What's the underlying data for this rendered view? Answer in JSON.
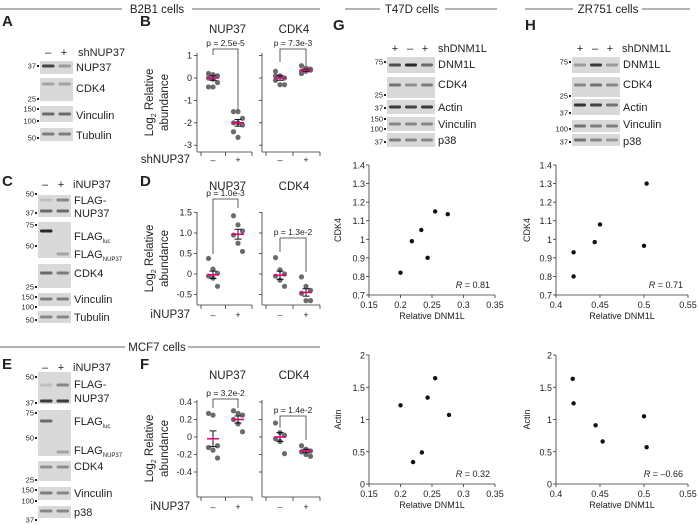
{
  "sections": {
    "b2b1": "B2B1 cells",
    "mcf7": "MCF7 cells",
    "t47d": "T47D cells",
    "zr751": "ZR751 cells"
  },
  "panel_letters": {
    "A": "A",
    "B": "B",
    "C": "C",
    "D": "D",
    "E": "E",
    "F": "F",
    "G": "G",
    "H": "H"
  },
  "blots": {
    "A": {
      "lanes": [
        "–",
        "+"
      ],
      "condition": "shNUP37",
      "strips": [
        {
          "label": "NUP37",
          "markers": [
            "37"
          ],
          "bands": [
            0.8,
            0.35
          ]
        },
        {
          "label": "CDK4",
          "markers": [
            "25"
          ],
          "bands": [
            0.3,
            0.3
          ]
        },
        {
          "label": "Vinculin",
          "markers": [
            "150",
            "100"
          ],
          "bands": [
            0.6,
            0.6
          ]
        },
        {
          "label": "Tubulin",
          "markers": [
            "50"
          ],
          "bands": [
            0.5,
            0.5
          ]
        }
      ]
    },
    "C": {
      "lanes": [
        "–",
        "+"
      ],
      "condition": "iNUP37",
      "strips": [
        {
          "label": "FLAG-",
          "label2": "NUP37",
          "markers": [
            "50",
            "37"
          ],
          "bands": [
            0.6,
            0.6
          ]
        },
        {
          "label": "FLAG",
          "sub": "luc",
          "label2": "FLAG",
          "sub2": "NUP37",
          "markers": [
            "75",
            "50"
          ],
          "bands": [
            0.95,
            0.0
          ]
        },
        {
          "label": "CDK4",
          "markers": [
            "25"
          ],
          "bands": [
            0.6,
            0.5
          ]
        },
        {
          "label": "Vinculin",
          "markers": [
            "150",
            "100"
          ],
          "bands": [
            0.5,
            0.5
          ]
        },
        {
          "label": "Tubulin",
          "markers": [
            "50"
          ],
          "bands": [
            0.45,
            0.45
          ]
        }
      ]
    },
    "E": {
      "lanes": [
        "–",
        "+"
      ],
      "condition": "iNUP37",
      "strips": [
        {
          "label": "FLAG-",
          "label2": "NUP37",
          "markers": [
            "50",
            "37"
          ],
          "bands": [
            0.85,
            0.85
          ]
        },
        {
          "label": "FLAG",
          "sub": "luc",
          "label2": "FLAG",
          "sub2": "NUP37",
          "markers": [
            "75",
            "50"
          ],
          "bands": [
            0.6,
            0.0
          ]
        },
        {
          "label": "CDK4",
          "markers": [
            "25"
          ],
          "bands": [
            0.4,
            0.4
          ]
        },
        {
          "label": "Vinculin",
          "markers": [
            "150",
            "100"
          ],
          "bands": [
            0.5,
            0.45
          ]
        },
        {
          "label": "p38",
          "markers": [
            "37"
          ],
          "bands": [
            0.45,
            0.45
          ]
        }
      ]
    },
    "G": {
      "lanes": [
        "+",
        "–",
        "+"
      ],
      "condition": "shDNM1L",
      "strips": [
        {
          "label": "DNM1L",
          "markers": [
            "75"
          ],
          "bands": [
            0.75,
            0.95,
            0.6
          ]
        },
        {
          "label": "CDK4",
          "markers": [
            "25"
          ],
          "bands": [
            0.55,
            0.4,
            0.5
          ]
        },
        {
          "label": "Actin",
          "markers": [
            "37"
          ],
          "bands": [
            0.85,
            0.8,
            0.85
          ]
        },
        {
          "label": "Vinculin",
          "markers": [
            "150",
            "100"
          ],
          "bands": [
            0.45,
            0.45,
            0.45
          ]
        },
        {
          "label": "p38",
          "markers": [
            "37"
          ],
          "bands": [
            0.5,
            0.45,
            0.45
          ]
        }
      ]
    },
    "H": {
      "lanes": [
        "+",
        "–",
        "+"
      ],
      "condition": "shDNM1L",
      "strips": [
        {
          "label": "DNM1L",
          "markers": [
            "75"
          ],
          "bands": [
            0.35,
            0.85,
            0.35
          ]
        },
        {
          "label": "CDK4",
          "markers": [
            "25"
          ],
          "bands": [
            0.45,
            0.55,
            0.45
          ]
        },
        {
          "label": "Actin",
          "markers": [
            "37"
          ],
          "bands": [
            0.9,
            0.8,
            0.55
          ]
        },
        {
          "label": "Vinculin",
          "markers": [
            "100"
          ],
          "bands": [
            0.55,
            0.5,
            0.5
          ]
        },
        {
          "label": "p38",
          "markers": [
            "37"
          ],
          "bands": [
            0.55,
            0.45,
            0.35
          ]
        }
      ]
    }
  },
  "chart_data": [
    {
      "id": "B",
      "type": "scatter",
      "subtype": "dot-plot-mean-sem",
      "ylabel": "Log2 Relative abundance",
      "ylabel_main": "Log",
      "ylabel_sub": "2",
      "ylabel_rest": " Relative",
      "ylabel_line2": "abundance",
      "xlabel": "shNUP37",
      "xticks": [
        "–",
        "+"
      ],
      "ylim": [
        -3,
        1
      ],
      "yticks": [
        "1",
        "0",
        "-1",
        "-2",
        "-3"
      ],
      "ytick_values": [
        1,
        0,
        -1,
        -2,
        -3
      ],
      "panels": [
        {
          "title": "NUP37",
          "p": "p = 2.5e-5",
          "groups": [
            {
              "x": "–",
              "values": [
                0.2,
                0.15,
                0.1,
                0.0,
                -0.05,
                -0.2,
                -0.4,
                -0.4
              ],
              "mean": 0.0,
              "sem": 0.1
            },
            {
              "x": "+",
              "values": [
                -1.5,
                -1.5,
                -1.8,
                -2.0,
                -2.0,
                -2.1,
                -2.4,
                -2.65
              ],
              "mean": -2.0,
              "sem": 0.15
            }
          ]
        },
        {
          "title": "CDK4",
          "p": "p = 7.3e-3",
          "groups": [
            {
              "x": "–",
              "values": [
                0.3,
                0.1,
                0.0,
                -0.1,
                -0.3,
                -0.3,
                0.1
              ],
              "mean": 0.0,
              "sem": 0.1
            },
            {
              "x": "+",
              "values": [
                0.55,
                0.45,
                0.35,
                0.3,
                0.3,
                0.4,
                0.2
              ],
              "mean": 0.35,
              "sem": 0.05
            }
          ]
        }
      ]
    },
    {
      "id": "D",
      "type": "scatter",
      "subtype": "dot-plot-mean-sem",
      "ylabel": "Log2 Relative abundance",
      "ylabel_main": "Log",
      "ylabel_sub": "2",
      "ylabel_rest": " Relative",
      "ylabel_line2": "abundance",
      "xlabel": "iNUP37",
      "xticks": [
        "–",
        "+"
      ],
      "ylim": [
        -0.7,
        1.5
      ],
      "yticks": [
        "1.5",
        "1.0",
        "0.5",
        "0",
        "-0.5"
      ],
      "ytick_values": [
        1.5,
        1.0,
        0.5,
        0,
        -0.5
      ],
      "panels": [
        {
          "title": "NUP37",
          "p": "p = 1.0e-3",
          "groups": [
            {
              "x": "–",
              "values": [
                0.38,
                0.12,
                0.02,
                -0.05,
                -0.1,
                -0.3
              ],
              "mean": -0.02,
              "sem": 0.09
            },
            {
              "x": "+",
              "values": [
                1.42,
                1.2,
                1.05,
                0.95,
                0.75,
                0.55
              ],
              "mean": 0.97,
              "sem": 0.12
            }
          ]
        },
        {
          "title": "CDK4",
          "p": "p = 1.3e-2",
          "groups": [
            {
              "x": "–",
              "values": [
                0.4,
                0.1,
                0.0,
                -0.05,
                -0.15,
                -0.3
              ],
              "mean": -0.03,
              "sem": 0.1
            },
            {
              "x": "+",
              "values": [
                -0.07,
                -0.3,
                -0.4,
                -0.47,
                -0.65,
                -0.65
              ],
              "mean": -0.45,
              "sem": 0.09
            }
          ]
        }
      ]
    },
    {
      "id": "F",
      "type": "scatter",
      "subtype": "dot-plot-mean-sem",
      "ylabel": "Log2 Relative abundance",
      "ylabel_main": "Log",
      "ylabel_sub": "2",
      "ylabel_rest": " Relative",
      "ylabel_line2": "abundance",
      "xlabel": "iNUP37",
      "xticks": [
        "–",
        "+"
      ],
      "ylim": [
        -0.4,
        0.4
      ],
      "yticks": [
        "0.4",
        "0.2",
        "0",
        "-0.2",
        "-0.4"
      ],
      "ytick_values": [
        0.4,
        0.2,
        0,
        -0.2,
        -0.4
      ],
      "panels": [
        {
          "title": "NUP37",
          "p": "p = 3.2e-2",
          "groups": [
            {
              "x": "–",
              "values": [
                0.27,
                0.25,
                -0.1,
                -0.12,
                -0.15,
                -0.24
              ],
              "mean": -0.02,
              "sem": 0.09
            },
            {
              "x": "+",
              "values": [
                0.3,
                0.27,
                0.25,
                0.2,
                0.15,
                0.06
              ],
              "mean": 0.2,
              "sem": 0.04
            }
          ]
        },
        {
          "title": "CDK4",
          "p": "p = 1.4e-2",
          "groups": [
            {
              "x": "–",
              "values": [
                0.16,
                0.05,
                0.02,
                -0.02,
                -0.05,
                -0.19
              ],
              "mean": 0.0,
              "sem": 0.05
            },
            {
              "x": "+",
              "values": [
                -0.1,
                -0.14,
                -0.16,
                -0.17,
                -0.2,
                -0.22
              ],
              "mean": -0.16,
              "sem": 0.02
            }
          ]
        }
      ]
    },
    {
      "id": "G1",
      "type": "scatter",
      "xlabel": "Relative DNM1L",
      "ylabel": "CDK4",
      "xlim": [
        0.15,
        0.35
      ],
      "ylim": [
        0.7,
        1.4
      ],
      "xticks": [
        "0.15",
        "0.2",
        "0.25",
        "0.3",
        "0.35"
      ],
      "xtick_values": [
        0.15,
        0.2,
        0.25,
        0.3,
        0.35
      ],
      "yticks": [
        "1.4",
        "1.3",
        "1.2",
        "1.1",
        "1",
        "0.9",
        "0.8",
        "0.7"
      ],
      "ytick_values": [
        1.4,
        1.3,
        1.2,
        1.1,
        1.0,
        0.9,
        0.8,
        0.7
      ],
      "points": [
        [
          0.2,
          0.82
        ],
        [
          0.218,
          0.99
        ],
        [
          0.233,
          1.05
        ],
        [
          0.243,
          0.9
        ],
        [
          0.255,
          1.15
        ],
        [
          0.275,
          1.135
        ]
      ],
      "r_label": "R",
      "r_value": " = 0.81"
    },
    {
      "id": "H1",
      "type": "scatter",
      "xlabel": "Relative DNM1L",
      "ylabel": "CDK4",
      "xlim": [
        0.4,
        0.55
      ],
      "ylim": [
        0.7,
        1.4
      ],
      "xticks": [
        "0.4",
        "0.45",
        "0.5",
        "0.55"
      ],
      "xtick_values": [
        0.4,
        0.45,
        0.5,
        0.55
      ],
      "yticks": [
        "1.4",
        "1.3",
        "1.2",
        "1.1",
        "1",
        "0.9",
        "0.8",
        "0.7"
      ],
      "ytick_values": [
        1.4,
        1.3,
        1.2,
        1.1,
        1.0,
        0.9,
        0.8,
        0.7
      ],
      "points": [
        [
          0.42,
          0.8
        ],
        [
          0.42,
          0.93
        ],
        [
          0.444,
          0.985
        ],
        [
          0.45,
          1.08
        ],
        [
          0.5,
          0.965
        ],
        [
          0.503,
          1.3
        ]
      ],
      "r_label": "R",
      "r_value": " = 0.71"
    },
    {
      "id": "G2",
      "type": "scatter",
      "xlabel": "Relative DNM1L",
      "ylabel": "Actin",
      "xlim": [
        0.15,
        0.35
      ],
      "ylim": [
        0,
        2
      ],
      "xticks": [
        "0.15",
        "0.2",
        "0.25",
        "0.3",
        "0.35"
      ],
      "xtick_values": [
        0.15,
        0.2,
        0.25,
        0.3,
        0.35
      ],
      "yticks": [
        "2",
        "1.5",
        "1",
        "0.5",
        "0"
      ],
      "ytick_values": [
        2,
        1.5,
        1,
        0.5,
        0
      ],
      "points": [
        [
          0.2,
          1.22
        ],
        [
          0.22,
          0.34
        ],
        [
          0.234,
          0.49
        ],
        [
          0.243,
          1.34
        ],
        [
          0.255,
          1.64
        ],
        [
          0.277,
          1.07
        ]
      ],
      "r_label": "R",
      "r_value": " = 0.32"
    },
    {
      "id": "H2",
      "type": "scatter",
      "xlabel": "Relative DNM1L",
      "ylabel": "Actin",
      "xlim": [
        0.4,
        0.55
      ],
      "ylim": [
        0,
        2
      ],
      "xticks": [
        "0.4",
        "0.45",
        "0.5",
        "0.55"
      ],
      "xtick_values": [
        0.4,
        0.45,
        0.5,
        0.55
      ],
      "yticks": [
        "2",
        "1.5",
        "1",
        "0.5",
        "0"
      ],
      "ytick_values": [
        2,
        1.5,
        1,
        0.5,
        0
      ],
      "points": [
        [
          0.419,
          1.63
        ],
        [
          0.42,
          1.25
        ],
        [
          0.445,
          0.91
        ],
        [
          0.453,
          0.66
        ],
        [
          0.5,
          1.05
        ],
        [
          0.503,
          0.57
        ]
      ],
      "r_label": "R",
      "r_value": " = –0.66"
    }
  ],
  "colors": {
    "mean_bar": "#e6007e",
    "dot": "#6b6b6b",
    "point": "#111111",
    "text": "#222222"
  }
}
